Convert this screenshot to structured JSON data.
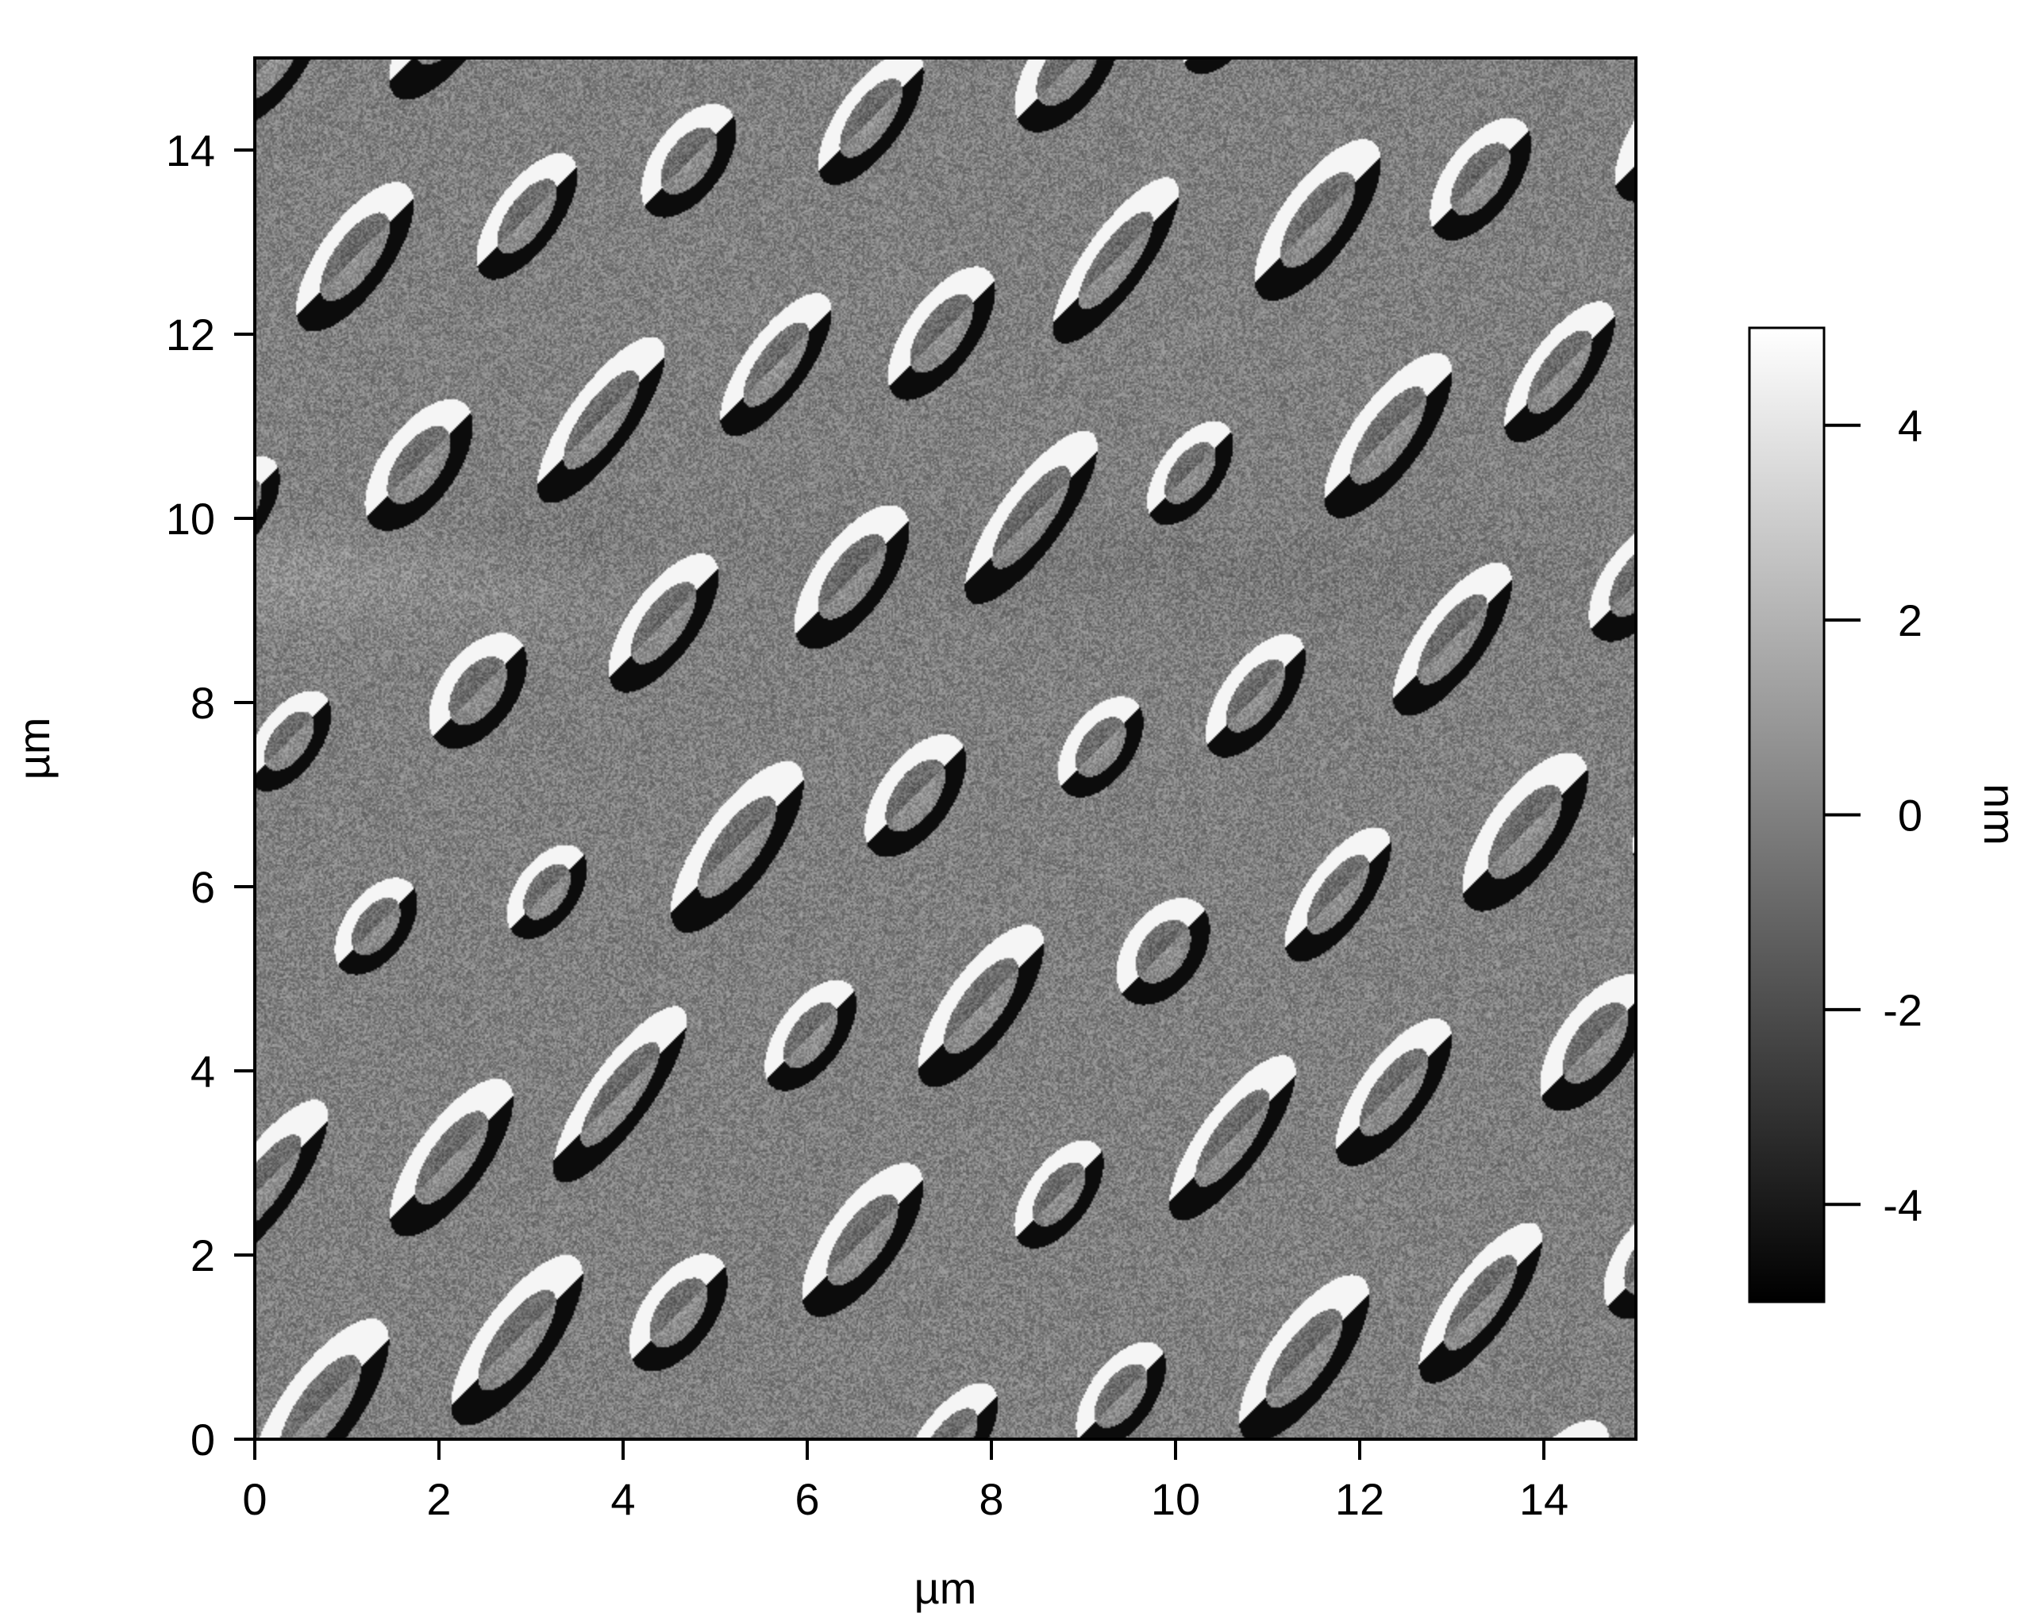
{
  "chart_data": {
    "type": "heatmap",
    "xlabel": "µm",
    "ylabel": "µm",
    "xlim": [
      0,
      15
    ],
    "ylim": [
      0,
      15
    ],
    "xticks": [
      "0",
      "2",
      "4",
      "6",
      "8",
      "10",
      "12",
      "14"
    ],
    "yticks": [
      "0",
      "2",
      "4",
      "6",
      "8",
      "10",
      "12",
      "14"
    ],
    "colorbar": {
      "label": "nm",
      "range": [
        -5,
        5
      ],
      "ticks": [
        "-4",
        "-2",
        "0",
        "2",
        "4"
      ],
      "colormap": "grayscale",
      "low_color": "#000000",
      "high_color": "#ffffff"
    },
    "grid": false
  }
}
